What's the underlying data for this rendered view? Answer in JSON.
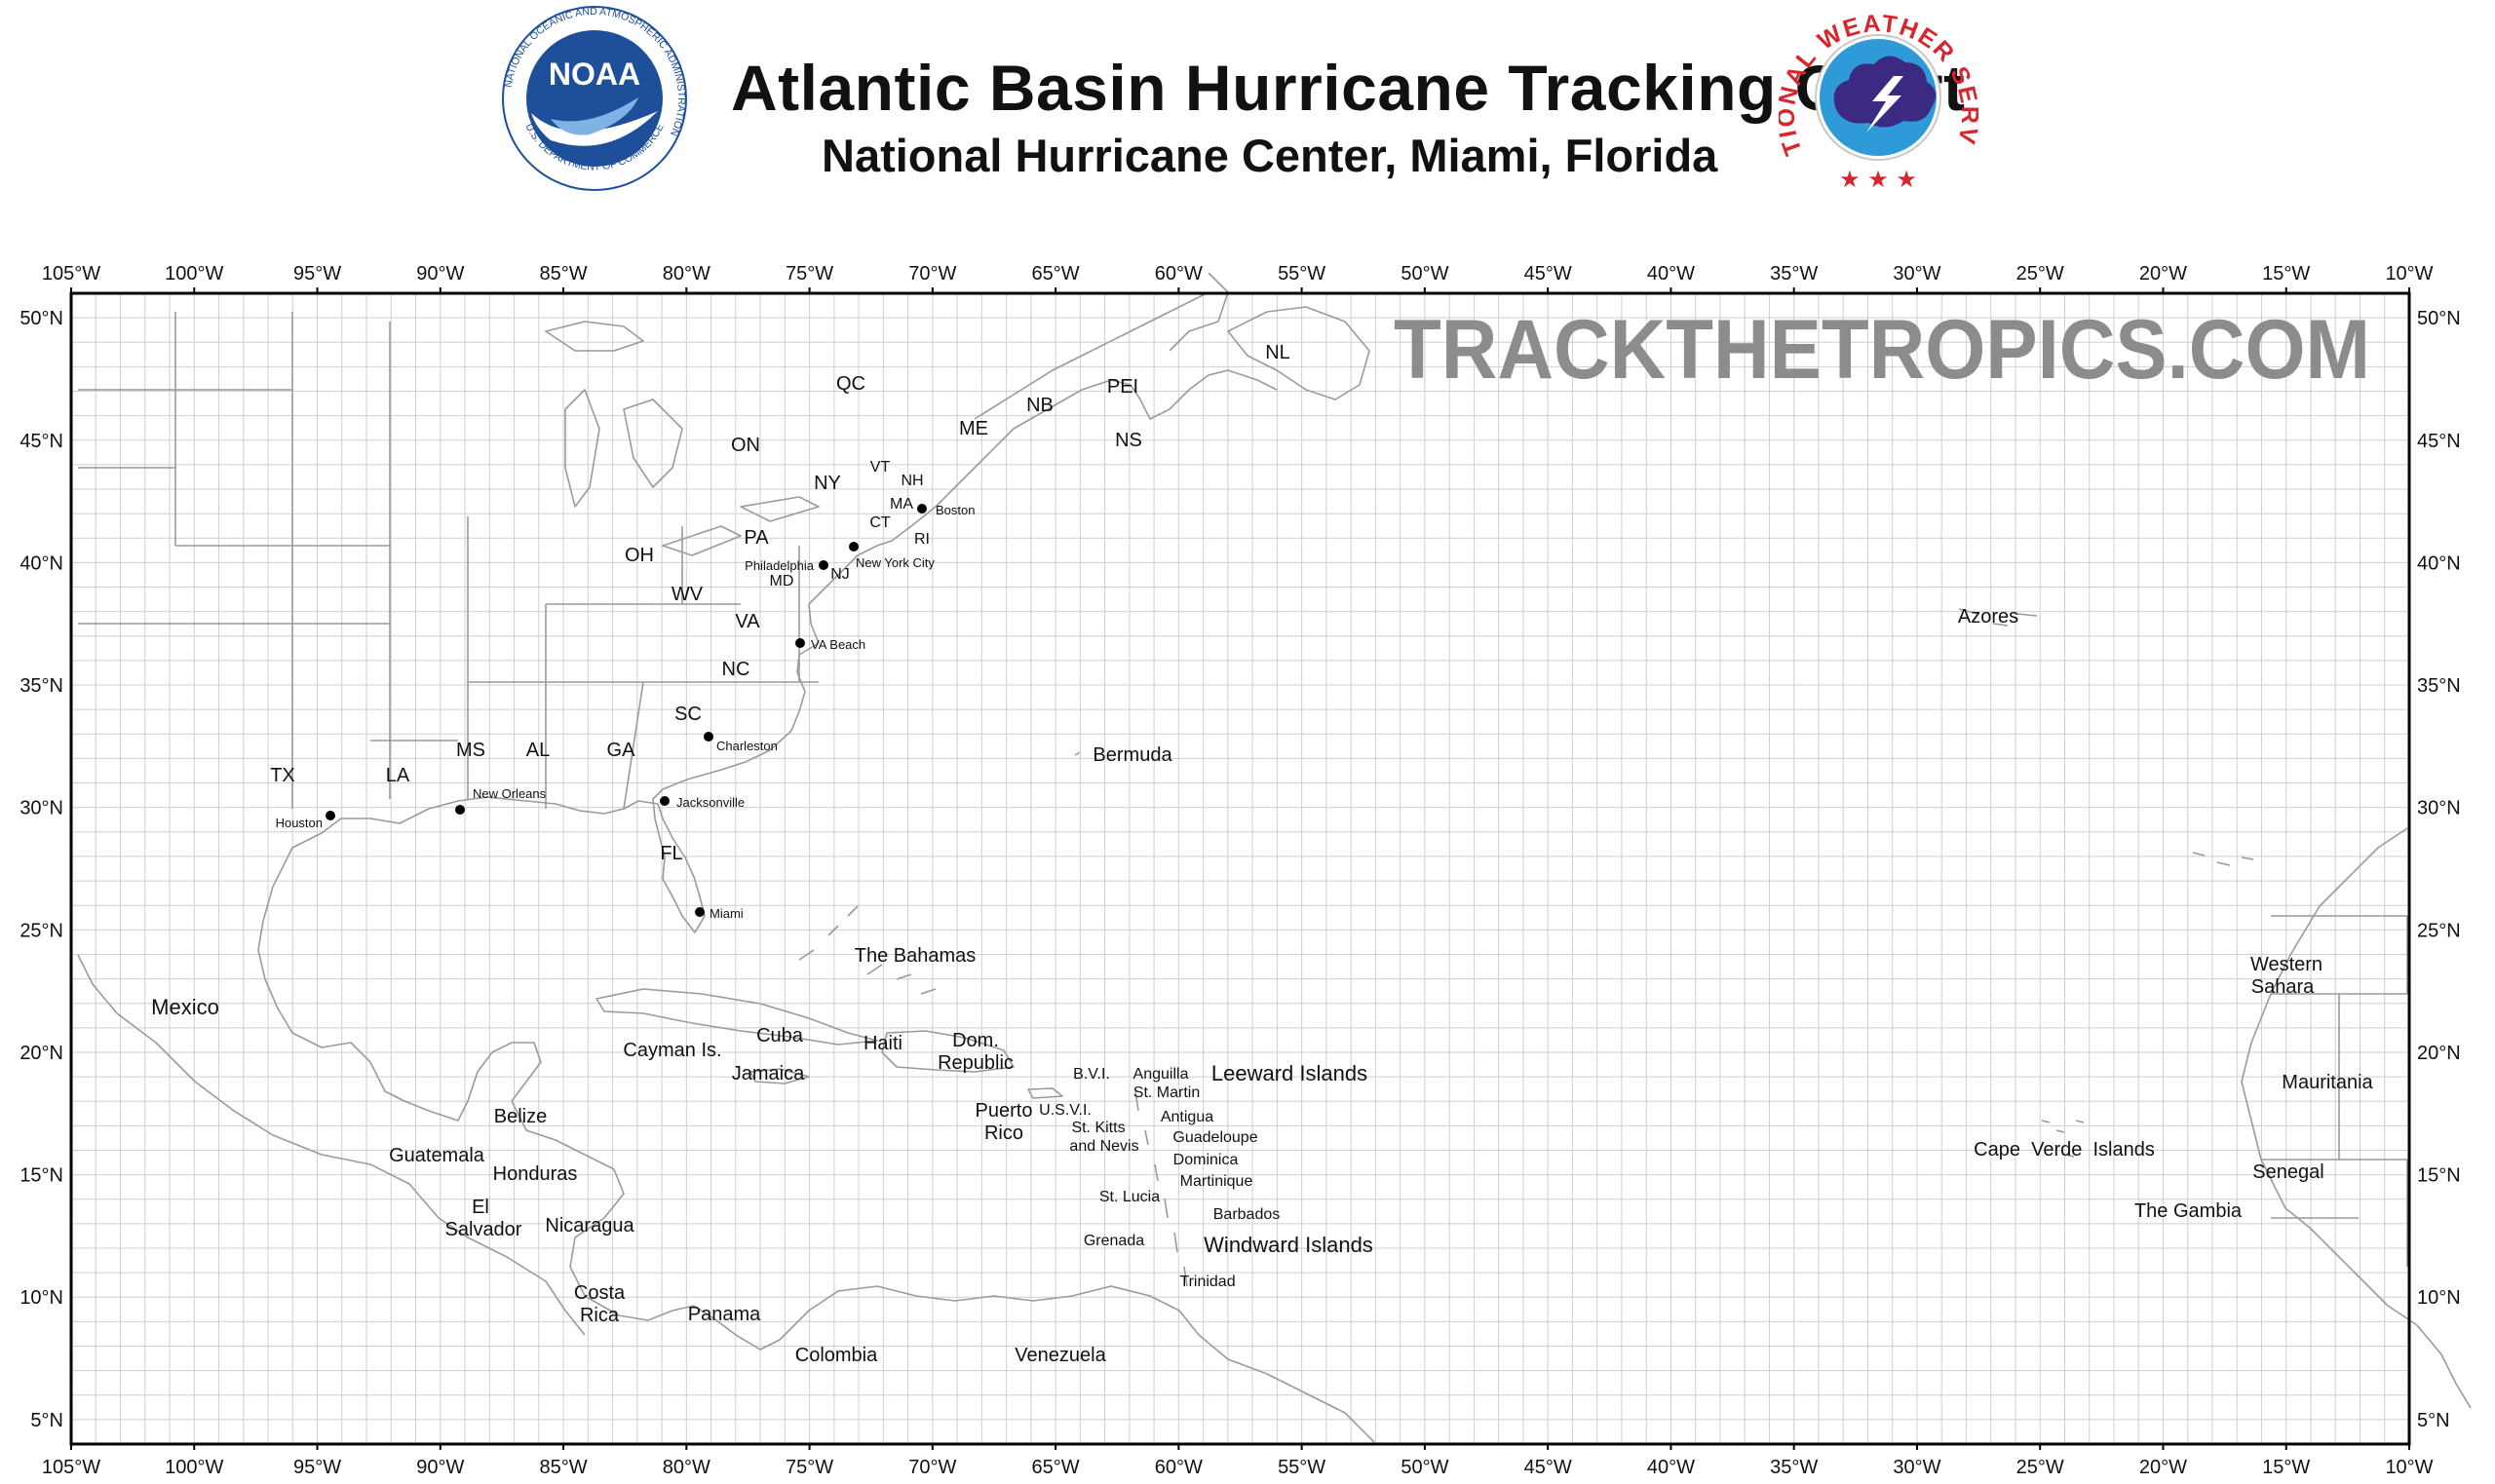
{
  "header": {
    "title": "Atlantic Basin Hurricane Tracking Chart",
    "subtitle": "National Hurricane Center, Miami, Florida",
    "noaa_logo": {
      "text": "NOAA",
      "ring_text": "NATIONAL OCEANIC AND ATMOSPHERIC ADMINISTRATION",
      "bottom_text": "U.S. DEPARTMENT OF COMMERCE"
    },
    "nws_logo": {
      "ring_text": "NATIONAL WEATHER SERVICE"
    }
  },
  "watermark": "TRACKTHETROPICS.COM",
  "colors": {
    "grid": "#cfcfcf",
    "coast": "#9a9a9a",
    "frame": "#000000",
    "watermark": "#8c8c8c",
    "noaa_blue": "#1d4f9a",
    "nws_purple": "#3c2a82",
    "nws_red": "#d8262e"
  },
  "axes": {
    "lon_labels": [
      "105°W",
      "100°W",
      "95°W",
      "90°W",
      "85°W",
      "80°W",
      "75°W",
      "70°W",
      "65°W",
      "60°W",
      "55°W",
      "50°W",
      "45°W",
      "40°W",
      "35°W",
      "30°W",
      "25°W",
      "20°W",
      "15°W",
      "10°W"
    ],
    "lat_labels": [
      "50°N",
      "45°N",
      "40°N",
      "35°N",
      "30°N",
      "25°N",
      "20°N",
      "15°N",
      "10°N",
      "5°N"
    ],
    "lon_range": [
      -105,
      -10
    ],
    "lat_range": [
      4,
      51
    ],
    "grid_step_degrees": 1
  },
  "places": [
    {
      "name": "NL"
    },
    {
      "name": "QC"
    },
    {
      "name": "PEI"
    },
    {
      "name": "NB"
    },
    {
      "name": "ME"
    },
    {
      "name": "NS"
    },
    {
      "name": "ON"
    },
    {
      "name": "VT"
    },
    {
      "name": "NH"
    },
    {
      "name": "NY"
    },
    {
      "name": "MA"
    },
    {
      "name": "CT"
    },
    {
      "name": "RI"
    },
    {
      "name": "PA"
    },
    {
      "name": "NJ"
    },
    {
      "name": "OH"
    },
    {
      "name": "MD"
    },
    {
      "name": "WV"
    },
    {
      "name": "VA"
    },
    {
      "name": "NC"
    },
    {
      "name": "SC"
    },
    {
      "name": "MS"
    },
    {
      "name": "AL"
    },
    {
      "name": "GA"
    },
    {
      "name": "TX"
    },
    {
      "name": "LA"
    },
    {
      "name": "FL"
    },
    {
      "name": "Azores"
    },
    {
      "name": "Bermuda"
    },
    {
      "name": "The Bahamas"
    },
    {
      "name": "Mexico"
    },
    {
      "name": "Cuba"
    },
    {
      "name": "Cayman Is."
    },
    {
      "name": "Jamaica"
    },
    {
      "name": "Haiti"
    },
    {
      "name": "Dom."
    },
    {
      "name": "Republic"
    },
    {
      "name": "Puerto"
    },
    {
      "name": "Rico"
    },
    {
      "name": "B.V.I."
    },
    {
      "name": "U.S.V.I."
    },
    {
      "name": "Anguilla"
    },
    {
      "name": "St. Martin"
    },
    {
      "name": "Leeward Islands"
    },
    {
      "name": "Antigua"
    },
    {
      "name": "St. Kitts"
    },
    {
      "name": "and Nevis"
    },
    {
      "name": "Guadeloupe"
    },
    {
      "name": "Dominica"
    },
    {
      "name": "Martinique"
    },
    {
      "name": "St. Lucia"
    },
    {
      "name": "Barbados"
    },
    {
      "name": "Grenada"
    },
    {
      "name": "Windward Islands"
    },
    {
      "name": "Trinidad"
    },
    {
      "name": "Belize"
    },
    {
      "name": "Guatemala"
    },
    {
      "name": "Honduras"
    },
    {
      "name": "El"
    },
    {
      "name": "Salvador"
    },
    {
      "name": "Nicaragua"
    },
    {
      "name": "Costa"
    },
    {
      "name": "Rica"
    },
    {
      "name": "Panama"
    },
    {
      "name": "Colombia"
    },
    {
      "name": "Venezuela"
    },
    {
      "name": "Western"
    },
    {
      "name": "Sahara"
    },
    {
      "name": "Mauritania"
    },
    {
      "name": "Cape  Verde  Islands"
    },
    {
      "name": "Senegal"
    },
    {
      "name": "The Gambia"
    }
  ],
  "cities": [
    {
      "name": "Boston"
    },
    {
      "name": "New York City"
    },
    {
      "name": "Philadelphia"
    },
    {
      "name": "VA Beach"
    },
    {
      "name": "Charleston"
    },
    {
      "name": "Jacksonville"
    },
    {
      "name": "Miami"
    },
    {
      "name": "New Orleans"
    },
    {
      "name": "Houston"
    }
  ]
}
